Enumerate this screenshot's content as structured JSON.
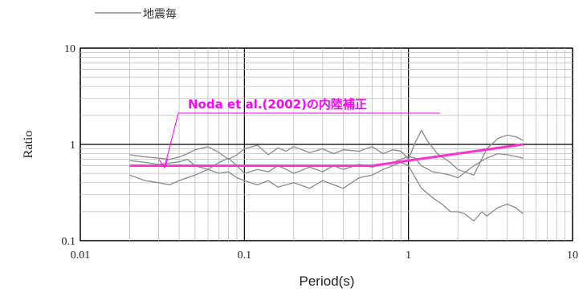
{
  "chart_data": {
    "type": "line",
    "title": "",
    "legend": {
      "label": "地震毎",
      "placement": "top-left"
    },
    "xlabel": "Period(s)",
    "ylabel": "Ratio",
    "xscale": "log",
    "yscale": "log",
    "xlim": [
      0.01,
      10
    ],
    "ylim": [
      0.1,
      10
    ],
    "grid": true,
    "x_ticks": [
      "0.01",
      "0.1",
      "1",
      "10"
    ],
    "y_ticks": [
      "0.1",
      "1",
      "10"
    ],
    "series": [
      {
        "name": "地震毎",
        "color": "#8a8a8a",
        "x": [
          0.02,
          0.025,
          0.03,
          0.035,
          0.04,
          0.045,
          0.05,
          0.06,
          0.07,
          0.08,
          0.09,
          0.1,
          0.12,
          0.14,
          0.16,
          0.18,
          0.2,
          0.25,
          0.3,
          0.35,
          0.4,
          0.5,
          0.6,
          0.7,
          0.8,
          0.9,
          1.0,
          1.1,
          1.2,
          1.3,
          1.5,
          1.8,
          2.0,
          2.5,
          3.0,
          3.5,
          4.0,
          4.5,
          5.0
        ],
        "values": [
          0.78,
          0.74,
          0.72,
          0.7,
          0.74,
          0.8,
          0.88,
          0.95,
          0.82,
          0.7,
          0.78,
          0.9,
          0.98,
          0.78,
          0.92,
          0.85,
          0.95,
          0.82,
          0.9,
          0.8,
          0.88,
          0.85,
          0.95,
          0.8,
          0.88,
          0.85,
          0.7,
          1.05,
          1.4,
          1.1,
          0.8,
          0.65,
          0.55,
          0.48,
          0.9,
          1.15,
          1.25,
          1.2,
          1.1
        ]
      },
      {
        "name": "",
        "color": "#8a8a8a",
        "x": [
          0.02,
          0.025,
          0.03,
          0.035,
          0.04,
          0.045,
          0.05,
          0.06,
          0.07,
          0.08,
          0.09,
          0.1,
          0.12,
          0.14,
          0.16,
          0.18,
          0.2,
          0.25,
          0.3,
          0.35,
          0.4,
          0.5,
          0.6,
          0.7,
          0.8,
          0.9,
          1.0,
          1.1,
          1.2,
          1.4,
          1.6,
          1.8,
          2.0,
          2.5,
          3.0,
          3.5,
          4.0,
          4.5,
          5.0
        ],
        "values": [
          0.68,
          0.65,
          0.62,
          0.64,
          0.66,
          0.7,
          0.6,
          0.55,
          0.65,
          0.72,
          0.6,
          0.5,
          0.55,
          0.52,
          0.6,
          0.55,
          0.5,
          0.58,
          0.52,
          0.6,
          0.55,
          0.62,
          0.58,
          0.62,
          0.65,
          0.7,
          0.75,
          0.72,
          0.6,
          0.52,
          0.5,
          0.48,
          0.45,
          0.6,
          0.72,
          0.8,
          0.78,
          0.75,
          0.72
        ]
      },
      {
        "name": "",
        "color": "#8a8a8a",
        "x": [
          0.02,
          0.025,
          0.03,
          0.035,
          0.04,
          0.05,
          0.06,
          0.07,
          0.08,
          0.09,
          0.1,
          0.12,
          0.14,
          0.16,
          0.2,
          0.25,
          0.3,
          0.35,
          0.4,
          0.5,
          0.6,
          0.7,
          0.8,
          0.9,
          1.0,
          1.1,
          1.2,
          1.4,
          1.6,
          1.8,
          2.0,
          2.2,
          2.5,
          2.8,
          3.0,
          3.5,
          4.0,
          4.5,
          5.0
        ],
        "values": [
          0.48,
          0.42,
          0.4,
          0.38,
          0.42,
          0.48,
          0.55,
          0.5,
          0.52,
          0.45,
          0.42,
          0.38,
          0.42,
          0.36,
          0.4,
          0.35,
          0.42,
          0.38,
          0.35,
          0.45,
          0.48,
          0.55,
          0.6,
          0.65,
          0.6,
          0.45,
          0.35,
          0.28,
          0.24,
          0.2,
          0.2,
          0.19,
          0.16,
          0.2,
          0.18,
          0.22,
          0.24,
          0.22,
          0.19
        ]
      },
      {
        "name": "Noda et al.(2002)の内陸補正",
        "color": "#ff33cc",
        "x": [
          0.02,
          0.6,
          5.0
        ],
        "values": [
          0.6,
          0.6,
          1.0
        ]
      }
    ],
    "annotation": {
      "text": "Noda et al.(2002)の内陸補正",
      "color": "#ff00ff",
      "arrow_target": {
        "x": 0.033,
        "y": 0.6
      }
    }
  }
}
